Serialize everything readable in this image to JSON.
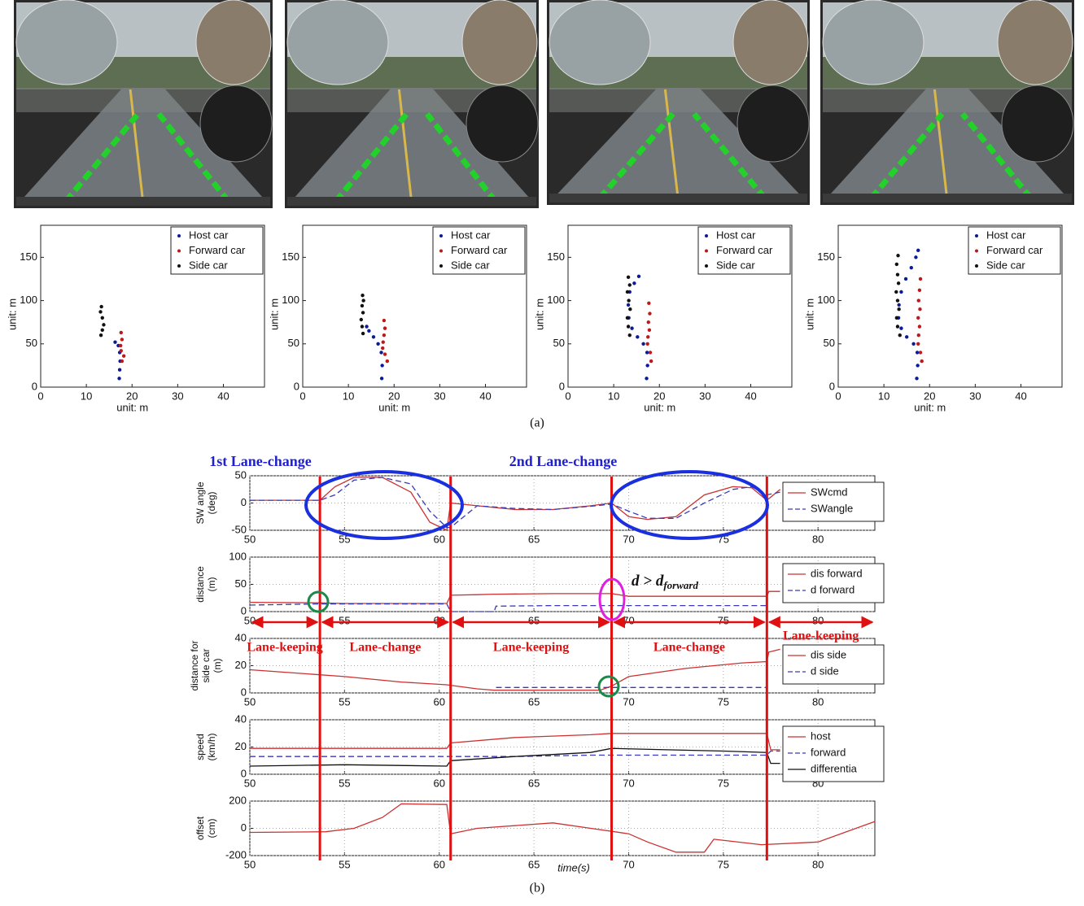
{
  "figure": {
    "caption_a": "(a)",
    "caption_b": "(b)",
    "lane_change_labels": [
      "1st Lane-change",
      "2nd Lane-change"
    ],
    "event_times": [
      53.7,
      60.6,
      69.1,
      77.3
    ],
    "phase_labels": [
      "Lane-keeping",
      "Lane-change",
      "Lane-keeping",
      "Lane-change",
      "Lane-keeping"
    ],
    "condition": {
      "main": "d > d",
      "sub": "forward"
    }
  },
  "chart_data": [
    {
      "type": "scatter",
      "xlabel": "unit: m",
      "ylabel": "unit: m",
      "xlim": [
        0,
        49
      ],
      "ylim": [
        0,
        187
      ],
      "xticks": [
        0,
        10,
        20,
        30,
        40
      ],
      "yticks": [
        0,
        50,
        100,
        150
      ],
      "legend": "upper right",
      "series": [
        {
          "name": "Host car",
          "color": "#0a1a9a",
          "x": [
            17.2,
            17.3,
            17.4,
            17.3,
            17,
            16.3
          ],
          "values": [
            10,
            20,
            30,
            40,
            48,
            52
          ]
        },
        {
          "name": "Forward car",
          "color": "#c01818",
          "x": [
            17.8,
            18.2,
            17.6,
            17.5,
            17.8,
            17.6
          ],
          "values": [
            30,
            36,
            42,
            48,
            55,
            63
          ]
        },
        {
          "name": "Side car",
          "color": "#111111",
          "x": [
            13.2,
            13.5,
            13.8,
            13.5,
            13.1,
            13.3
          ],
          "values": [
            60,
            66,
            72,
            80,
            87,
            93
          ]
        }
      ]
    },
    {
      "type": "scatter",
      "xlabel": "unit: m",
      "ylabel": "unit: m",
      "xlim": [
        0,
        49
      ],
      "ylim": [
        0,
        187
      ],
      "xticks": [
        0,
        10,
        20,
        30,
        40
      ],
      "yticks": [
        0,
        50,
        100,
        150
      ],
      "legend": "upper right",
      "series": [
        {
          "name": "Host car",
          "color": "#0a1a9a",
          "x": [
            17.3,
            17.4,
            17.2,
            16.5,
            15.5,
            14.5,
            14.0
          ],
          "values": [
            10,
            25,
            40,
            50,
            58,
            65,
            70
          ]
        },
        {
          "name": "Forward car",
          "color": "#c01818",
          "x": [
            18.5,
            18.0,
            17.5,
            17.6,
            17.8,
            18.0,
            17.8
          ],
          "values": [
            30,
            38,
            45,
            52,
            60,
            68,
            77
          ]
        },
        {
          "name": "Side car",
          "color": "#111111",
          "x": [
            13.2,
            13.0,
            12.8,
            13.2,
            13.0,
            13.3,
            13.1
          ],
          "values": [
            62,
            70,
            78,
            86,
            94,
            100,
            106
          ]
        }
      ]
    },
    {
      "type": "scatter",
      "xlabel": "unit: m",
      "ylabel": "unit: m",
      "xlim": [
        0,
        49
      ],
      "ylim": [
        0,
        187
      ],
      "xticks": [
        0,
        10,
        20,
        30,
        40
      ],
      "yticks": [
        0,
        50,
        100,
        150
      ],
      "legend": "upper right",
      "series": [
        {
          "name": "Host car",
          "color": "#0a1a9a",
          "x": [
            17.2,
            17.4,
            17.3,
            16.5,
            15.2,
            14.0,
            13.3,
            13.2,
            13.5,
            14.5,
            15.5
          ],
          "values": [
            10,
            25,
            40,
            50,
            58,
            68,
            80,
            95,
            110,
            120,
            128
          ]
        },
        {
          "name": "Forward car",
          "color": "#c01818",
          "x": [
            18.2,
            18.0,
            17.4,
            17.5,
            17.8,
            17.6,
            17.9,
            17.7
          ],
          "values": [
            30,
            40,
            50,
            58,
            66,
            75,
            85,
            97
          ]
        },
        {
          "name": "Side car",
          "color": "#111111",
          "x": [
            13.5,
            13.2,
            13.0,
            13.6,
            13.3,
            13.0,
            13.5,
            13.2
          ],
          "values": [
            60,
            70,
            80,
            90,
            100,
            110,
            118,
            127
          ]
        }
      ]
    },
    {
      "type": "scatter",
      "xlabel": "unit: m",
      "ylabel": "unit: m",
      "xlim": [
        0,
        49
      ],
      "ylim": [
        0,
        187
      ],
      "xticks": [
        0,
        10,
        20,
        30,
        40
      ],
      "yticks": [
        0,
        50,
        100,
        150
      ],
      "legend": "upper right",
      "series": [
        {
          "name": "Host car",
          "color": "#0a1a9a",
          "x": [
            17.2,
            17.4,
            17.3,
            16.5,
            15.0,
            13.8,
            13.2,
            13.3,
            13.8,
            14.8,
            16.0,
            17.0,
            17.5
          ],
          "values": [
            10,
            25,
            40,
            50,
            58,
            68,
            80,
            95,
            110,
            125,
            138,
            150,
            158
          ]
        },
        {
          "name": "Forward car",
          "color": "#c01818",
          "x": [
            18.3,
            18.0,
            17.5,
            17.6,
            17.8,
            17.5,
            17.9,
            17.6,
            17.8,
            18.0
          ],
          "values": [
            30,
            40,
            50,
            60,
            70,
            80,
            90,
            100,
            112,
            125
          ]
        },
        {
          "name": "Side car",
          "color": "#111111",
          "x": [
            13.5,
            13.0,
            12.8,
            13.3,
            13.0,
            12.7,
            13.2,
            13.0,
            12.8,
            13.1
          ],
          "values": [
            60,
            70,
            80,
            90,
            100,
            110,
            120,
            130,
            142,
            152
          ]
        }
      ]
    },
    {
      "type": "line",
      "ylabel": [
        "SW angle",
        "(deg)"
      ],
      "xlim": [
        50,
        83
      ],
      "ylim": [
        -50,
        50
      ],
      "xticks": [
        50,
        55,
        60,
        65,
        70,
        75,
        80
      ],
      "yticks": [
        -50,
        0,
        50
      ],
      "grid": true,
      "x": [
        50,
        52,
        53.7,
        54.5,
        55.5,
        57,
        58.5,
        59.5,
        60.4,
        60.6,
        62,
        64,
        66,
        68,
        69.1,
        70,
        71,
        72.5,
        74,
        75.5,
        76.5,
        77.3,
        78
      ],
      "series": [
        {
          "name": "SWcmd",
          "color": "#cc3030",
          "dash": false,
          "values": [
            5,
            5,
            5,
            30,
            47,
            47,
            20,
            -35,
            -50,
            0,
            -5,
            -12,
            -12,
            -5,
            0,
            -25,
            -30,
            -25,
            15,
            30,
            28,
            5,
            25
          ]
        },
        {
          "name": "SWangle",
          "color": "#3a3ab8",
          "dash": true,
          "values": [
            5,
            5,
            5,
            15,
            42,
            47,
            35,
            -15,
            -45,
            -45,
            -5,
            -10,
            -12,
            -6,
            -2,
            -15,
            -28,
            -28,
            0,
            25,
            30,
            15,
            20
          ]
        }
      ]
    },
    {
      "type": "line",
      "ylabel": [
        "distance",
        "(m)"
      ],
      "xlim": [
        50,
        83
      ],
      "ylim": [
        0,
        100
      ],
      "xticks": [
        50,
        55,
        60,
        65,
        70,
        75,
        80
      ],
      "yticks": [
        0,
        50,
        100
      ],
      "grid": true,
      "x": [
        50,
        53.7,
        55,
        60.4,
        60.6,
        62,
        62.9,
        63,
        66,
        69.1,
        70,
        72,
        75,
        77.3,
        77.4,
        78
      ],
      "series": [
        {
          "name": "dis forward",
          "color": "#cc3030",
          "dash": false,
          "values": [
            17,
            16,
            15,
            15,
            30,
            31,
            32,
            32,
            33,
            33,
            28,
            28,
            28,
            28,
            37,
            37
          ]
        },
        {
          "name": "d forward",
          "color": "#3a3ab8",
          "dash": true,
          "values": [
            12,
            14,
            14,
            14,
            0,
            0,
            0,
            10,
            11,
            11,
            11,
            11,
            11,
            11,
            null,
            null
          ]
        }
      ]
    },
    {
      "type": "line",
      "ylabel": [
        "distance for",
        "side car",
        "(m)"
      ],
      "xlim": [
        50,
        83
      ],
      "ylim": [
        0,
        40
      ],
      "xticks": [
        50,
        55,
        60,
        65,
        70,
        75,
        80
      ],
      "yticks": [
        0,
        20,
        40
      ],
      "grid": true,
      "x": [
        50,
        53,
        55,
        58,
        60.4,
        62,
        62.9,
        63,
        66,
        68.5,
        69.1,
        70,
        73,
        76,
        77.3,
        77.4,
        78
      ],
      "series": [
        {
          "name": "dis side",
          "color": "#cc3030",
          "dash": false,
          "values": [
            17,
            14,
            12,
            8,
            6,
            3,
            2,
            2,
            2,
            2,
            5,
            12,
            18,
            22,
            23,
            30,
            32
          ]
        },
        {
          "name": "d side",
          "color": "#3a3ab8",
          "dash": true,
          "values": [
            null,
            null,
            null,
            null,
            null,
            null,
            null,
            4,
            4,
            4,
            4,
            4,
            4,
            4,
            4,
            null,
            null
          ]
        }
      ]
    },
    {
      "type": "line",
      "ylabel": [
        "speed",
        "(km/h)"
      ],
      "xlim": [
        50,
        83
      ],
      "ylim": [
        0,
        40
      ],
      "xticks": [
        50,
        55,
        60,
        65,
        70,
        75,
        80
      ],
      "yticks": [
        0,
        20,
        40
      ],
      "grid": true,
      "x": [
        50,
        55,
        60.4,
        60.6,
        64,
        68,
        69.1,
        72,
        75,
        77.3,
        77.5,
        78
      ],
      "series": [
        {
          "name": "host",
          "color": "#cc3030",
          "dash": false,
          "values": [
            19,
            19,
            19,
            23,
            27,
            29,
            30,
            30,
            30,
            30,
            18,
            18
          ]
        },
        {
          "name": "forward",
          "color": "#3a3ab8",
          "dash": true,
          "values": [
            13,
            13,
            13,
            13,
            13,
            14,
            14,
            14,
            14,
            14,
            17,
            17
          ]
        },
        {
          "name": "differentia",
          "color": "#111111",
          "dash": false,
          "values": [
            6,
            7,
            6,
            10,
            13,
            16,
            19,
            18,
            17,
            16,
            8,
            8
          ]
        }
      ]
    },
    {
      "type": "line",
      "ylabel": [
        "offset",
        "(cm)"
      ],
      "xlabel": "time(s)",
      "xlim": [
        50,
        83
      ],
      "ylim": [
        -200,
        200
      ],
      "xticks": [
        50,
        55,
        60,
        65,
        70,
        75,
        80
      ],
      "yticks": [
        -200,
        0,
        200
      ],
      "grid": true,
      "x": [
        50,
        54,
        55.5,
        57,
        58,
        60.4,
        60.6,
        62,
        66,
        68,
        70,
        71,
        72.5,
        74,
        74.5,
        77,
        80,
        83
      ],
      "series": [
        {
          "color": "#cc3030",
          "dash": false,
          "values": [
            -30,
            -25,
            0,
            80,
            180,
            175,
            -40,
            0,
            40,
            0,
            -40,
            -100,
            -175,
            -175,
            -80,
            -120,
            -100,
            50
          ]
        }
      ]
    }
  ]
}
